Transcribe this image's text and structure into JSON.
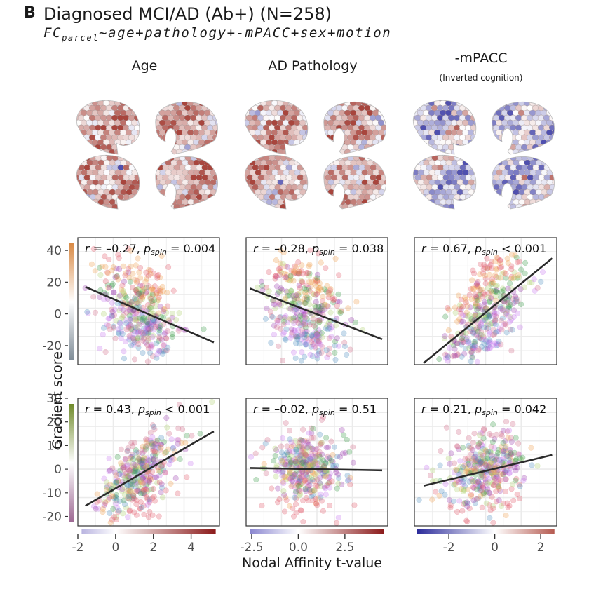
{
  "figure": {
    "panel_letter": "B",
    "title": "Diagnosed MCI/AD (Ab+) (N=258)",
    "formula_lhs": "FC",
    "formula_sub": "parcel",
    "formula_rhs": "~age+pathology+-mPACC+sex+motion",
    "columns": [
      {
        "title": "Age",
        "subtitle": ""
      },
      {
        "title": "AD Pathology",
        "subtitle": ""
      },
      {
        "title": "-mPACC",
        "subtitle": "(Inverted cognition)"
      }
    ],
    "ylabel": "Gradient score",
    "xlabel": "Nodal Affinity t-value"
  },
  "brain_maps": [
    {
      "column": "Age",
      "views": [
        "left-lateral",
        "left-medial",
        "right-lateral",
        "right-medial"
      ],
      "dominant_sign": "positive"
    },
    {
      "column": "AD Pathology",
      "views": [
        "left-lateral",
        "left-medial",
        "right-lateral",
        "right-medial"
      ],
      "dominant_sign": "positive"
    },
    {
      "column": "-mPACC",
      "views": [
        "left-lateral",
        "left-medial",
        "right-lateral",
        "right-medial"
      ],
      "dominant_sign": "mixed (negative lateral)"
    }
  ],
  "colors": {
    "regline": "#2b2b2b",
    "grid": "#ebebeb",
    "frame": "#333333",
    "row1_bar": [
      "#7f8c97",
      "#ffffff",
      "#d98a45"
    ],
    "row2_bar": [
      "#9e6a94",
      "#ffffff",
      "#6f8a2a"
    ],
    "xbar_age": [
      "#b9b4e0",
      "#ffffff",
      "#8b1a1a"
    ],
    "xbar_path": [
      "#8a86d0",
      "#ffffff",
      "#8b1a1a"
    ],
    "xbar_mpacc": [
      "#2a2a9a",
      "#ffffff",
      "#b55a50"
    ],
    "network_colors": [
      "#e05a6a",
      "#f0a050",
      "#b0d070",
      "#3a9a4a",
      "#9a40b0",
      "#c878f0",
      "#5090c0",
      "#d06a88"
    ]
  },
  "chart_data": [
    {
      "type": "scatter",
      "row": 1,
      "col": 1,
      "annotation_r": "r = -0.27,",
      "annotation_p": "= 0.004",
      "p_sub": "spin",
      "r": -0.27,
      "p_spin": 0.004,
      "xlim": [
        -2,
        5.5
      ],
      "ylim": [
        -32,
        48
      ],
      "xticks": [
        -2,
        0,
        2,
        4
      ],
      "yticks": [
        -20,
        0,
        20,
        40
      ],
      "ytick_labels": [
        "-20",
        "0",
        "20",
        "40"
      ],
      "regline": {
        "x": [
          -1.6,
          5.2
        ],
        "y": [
          17,
          -18
        ]
      },
      "cloud_center": [
        1.3,
        0
      ],
      "n_points": 400
    },
    {
      "type": "scatter",
      "row": 1,
      "col": 2,
      "annotation_r": "r = -0.28,",
      "annotation_p": "= 0.038",
      "p_sub": "spin",
      "r": -0.28,
      "p_spin": 0.038,
      "xlim": [
        -2.8,
        4.8
      ],
      "ylim": [
        -32,
        48
      ],
      "xticks": [
        -2.5,
        0.0,
        2.5
      ],
      "yticks": [
        -20,
        0,
        20,
        40
      ],
      "regline": {
        "x": [
          -2.6,
          4.5
        ],
        "y": [
          16,
          -16
        ]
      },
      "cloud_center": [
        0.4,
        5
      ],
      "n_points": 400
    },
    {
      "type": "scatter",
      "row": 1,
      "col": 3,
      "annotation_r": "r = 0.67,",
      "annotation_p": "< 0.001",
      "p_sub": "spin",
      "r": 0.67,
      "p_spin": 0.001,
      "xlim": [
        -3.5,
        2.7
      ],
      "ylim": [
        -32,
        48
      ],
      "xticks": [
        -2,
        0,
        2
      ],
      "yticks": [
        -20,
        0,
        20,
        40
      ],
      "regline": {
        "x": [
          -3.1,
          2.5
        ],
        "y": [
          -31,
          35
        ]
      },
      "cloud_center": [
        -0.4,
        2
      ],
      "n_points": 400
    },
    {
      "type": "scatter",
      "row": 2,
      "col": 1,
      "annotation_r": "r = 0.43,",
      "annotation_p": "< 0.001",
      "p_sub": "spin",
      "r": 0.43,
      "p_spin": 0.001,
      "xlim": [
        -2,
        5.5
      ],
      "ylim": [
        -24,
        30
      ],
      "xticks": [
        -2,
        0,
        2,
        4
      ],
      "yticks": [
        -20,
        -10,
        0,
        10,
        20,
        30
      ],
      "ytick_labels": [
        "-20",
        "-10",
        "0",
        "10",
        "20",
        "30"
      ],
      "regline": {
        "x": [
          -1.6,
          5.2
        ],
        "y": [
          -15.5,
          16
        ]
      },
      "cloud_center": [
        1.3,
        2
      ],
      "n_points": 400
    },
    {
      "type": "scatter",
      "row": 2,
      "col": 2,
      "annotation_r": "r = -0.02,",
      "annotation_p": "= 0.51",
      "p_sub": "spin",
      "r": -0.02,
      "p_spin": 0.51,
      "xlim": [
        -2.8,
        4.8
      ],
      "ylim": [
        -24,
        30
      ],
      "xticks": [
        -2.5,
        0.0,
        2.5
      ],
      "yticks": [
        -20,
        -10,
        0,
        10,
        20,
        30
      ],
      "regline": {
        "x": [
          -2.6,
          4.5
        ],
        "y": [
          0.5,
          -0.5
        ]
      },
      "cloud_center": [
        0.4,
        1
      ],
      "n_points": 400
    },
    {
      "type": "scatter",
      "row": 2,
      "col": 3,
      "annotation_r": "r = 0.21,",
      "annotation_p": "= 0.042",
      "p_sub": "spin",
      "r": 0.21,
      "p_spin": 0.042,
      "xlim": [
        -3.5,
        2.7
      ],
      "ylim": [
        -24,
        30
      ],
      "xticks": [
        -2,
        0,
        2
      ],
      "yticks": [
        -20,
        -10,
        0,
        10,
        20,
        30
      ],
      "regline": {
        "x": [
          -3.1,
          2.5
        ],
        "y": [
          -7,
          6
        ]
      },
      "cloud_center": [
        -0.4,
        1
      ],
      "n_points": 400
    }
  ],
  "x_colorbars": [
    {
      "col": 1,
      "range": [
        -1.8,
        5.3
      ],
      "ticks": [
        "-2",
        "0",
        "2",
        "4"
      ],
      "tick_values": [
        -2,
        0,
        2,
        4
      ]
    },
    {
      "col": 2,
      "range": [
        -2.6,
        4.6
      ],
      "ticks": [
        "-2.5",
        "0.0",
        "2.5"
      ],
      "tick_values": [
        -2.5,
        0.0,
        2.5
      ]
    },
    {
      "col": 3,
      "range": [
        -3.4,
        2.6
      ],
      "ticks": [
        "-2",
        "0",
        "2"
      ],
      "tick_values": [
        -2,
        0,
        2
      ]
    }
  ]
}
